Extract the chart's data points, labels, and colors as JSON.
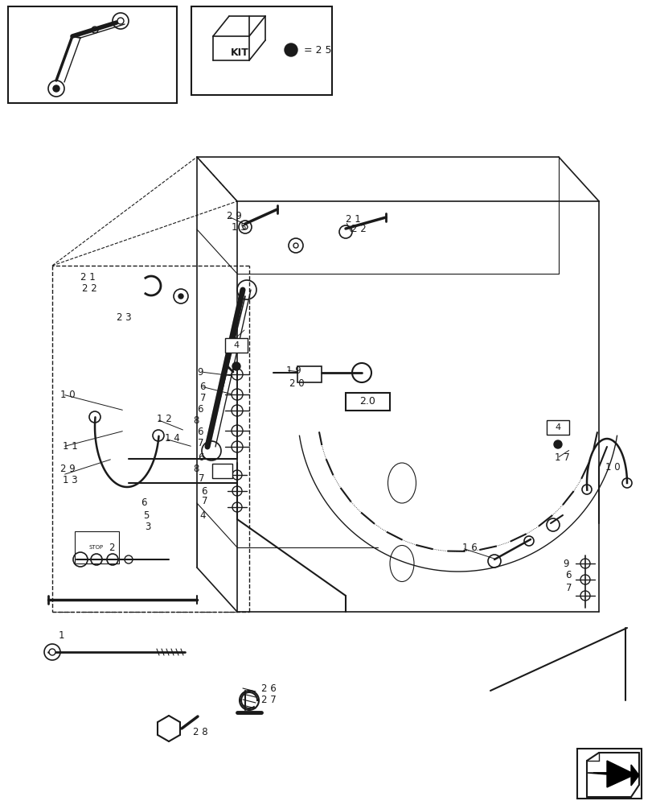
{
  "bg_color": "#ffffff",
  "line_color": "#1a1a1a",
  "fig_width": 8.12,
  "fig_height": 10.0,
  "dpi": 100
}
